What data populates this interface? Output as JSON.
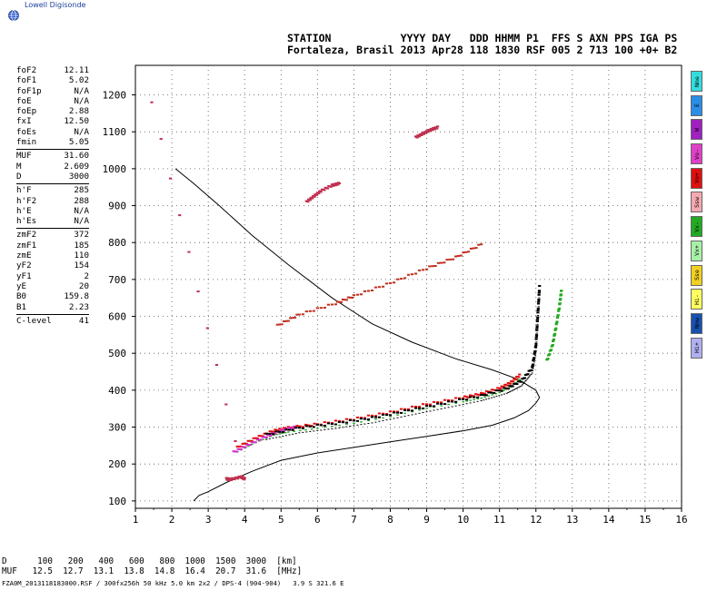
{
  "logo": {
    "text": "Lowell Digisonde"
  },
  "header": {
    "line1": "STATION           YYYY DAY   DDD HHMM P1  FFS S AXN PPS IGA PS",
    "line2": "Fortaleza, Brasil 2013 Apr28 118 1830 RSF 005 2 713 100 +0+ B2"
  },
  "params": [
    [
      {
        "k": "foF2",
        "v": "12.11"
      },
      {
        "k": "foF1",
        "v": "5.02"
      },
      {
        "k": "foF1p",
        "v": "N/A"
      },
      {
        "k": "foE",
        "v": "N/A"
      },
      {
        "k": "foEp",
        "v": "2.88"
      },
      {
        "k": "fxI",
        "v": "12.50"
      },
      {
        "k": "foEs",
        "v": "N/A"
      },
      {
        "k": "fmin",
        "v": "5.05"
      }
    ],
    [
      {
        "k": "MUF",
        "v": "31.60"
      },
      {
        "k": "M",
        "v": "2.609"
      },
      {
        "k": "D",
        "v": "3000"
      }
    ],
    [
      {
        "k": "h'F",
        "v": "285"
      },
      {
        "k": "h'F2",
        "v": "288"
      },
      {
        "k": "h'E",
        "v": "N/A"
      },
      {
        "k": "h'Es",
        "v": "N/A"
      }
    ],
    [
      {
        "k": "zmF2",
        "v": "372"
      },
      {
        "k": "zmF1",
        "v": "185"
      },
      {
        "k": "zmE",
        "v": "110"
      },
      {
        "k": "yF2",
        "v": "154"
      },
      {
        "k": "yF1",
        "v": "2"
      },
      {
        "k": "yE",
        "v": "20"
      },
      {
        "k": "B0",
        "v": "159.8"
      },
      {
        "k": "B1",
        "v": "2.23"
      }
    ],
    [
      {
        "k": "C-level",
        "v": "41"
      }
    ]
  ],
  "legend": [
    {
      "label": "Nne",
      "color": "#33dddd"
    },
    {
      "label": "E",
      "color": "#2a8de6"
    },
    {
      "label": "W",
      "color": "#a020c0"
    },
    {
      "label": "Vo-",
      "color": "#e040c8"
    },
    {
      "label": "Vo+",
      "color": "#e01010"
    },
    {
      "label": "Ssw",
      "color": "#f4a8b0"
    },
    {
      "label": "Vx-",
      "color": "#22aa22"
    },
    {
      "label": "Vx+",
      "color": "#a8f0a8"
    },
    {
      "label": "Sse",
      "color": "#f0d020"
    },
    {
      "label": "Hi-",
      "color": "#ffff60"
    },
    {
      "label": "Nnw",
      "color": "#1850b0"
    },
    {
      "label": "Hi+",
      "color": "#b0b0f0"
    }
  ],
  "muf_table": {
    "d_label": "D",
    "d_values": [
      "100",
      "200",
      "400",
      "600",
      "800",
      "1000",
      "1500",
      "3000"
    ],
    "d_unit": "[km]",
    "muf_label": "MUF",
    "muf_values": [
      "12.5",
      "12.7",
      "13.1",
      "13.8",
      "14.8",
      "16.4",
      "20.7",
      "31.6"
    ],
    "muf_unit": "[MHz]"
  },
  "footer": {
    "text": "FZA0M_2013118183000.RSF / 300fx256h 50 kHz 5.0 km 2x2 / DPS-4 (904-904)   3.9 S 321.6 E"
  },
  "chart_data": {
    "type": "scatter",
    "title": "",
    "xlabel": "",
    "ylabel": "",
    "xlim": [
      1,
      16
    ],
    "ylim": [
      80,
      1280
    ],
    "x_ticks": [
      1,
      2,
      3,
      4,
      5,
      6,
      7,
      8,
      9,
      10,
      11,
      12,
      13,
      14,
      15,
      16
    ],
    "y_ticks": [
      100,
      200,
      300,
      400,
      500,
      600,
      700,
      800,
      900,
      1000,
      1100,
      1200
    ],
    "grid": true,
    "profile": [
      [
        2.6,
        100
      ],
      [
        2.75,
        115
      ],
      [
        3.0,
        125
      ],
      [
        3.5,
        150
      ],
      [
        4.2,
        180
      ],
      [
        5.0,
        210
      ],
      [
        6.0,
        230
      ],
      [
        7.0,
        245
      ],
      [
        8.0,
        260
      ],
      [
        9.0,
        275
      ],
      [
        10.0,
        290
      ],
      [
        10.8,
        305
      ],
      [
        11.4,
        325
      ],
      [
        11.8,
        345
      ],
      [
        12.0,
        365
      ],
      [
        12.1,
        380
      ],
      [
        12.0,
        400
      ],
      [
        11.5,
        430
      ],
      [
        10.8,
        455
      ],
      [
        9.8,
        485
      ],
      [
        8.6,
        530
      ],
      [
        7.5,
        580
      ],
      [
        6.4,
        650
      ],
      [
        5.2,
        740
      ],
      [
        4.2,
        820
      ],
      [
        3.3,
        900
      ],
      [
        2.6,
        960
      ],
      [
        2.1,
        1000
      ]
    ],
    "traces": [
      {
        "name": "O F2 trace",
        "color": "#e01010",
        "points": [
          [
            3.8,
            245
          ],
          [
            4.3,
            270
          ],
          [
            4.8,
            290
          ],
          [
            5.2,
            298
          ],
          [
            6.0,
            308
          ],
          [
            7.0,
            322
          ],
          [
            8.0,
            340
          ],
          [
            9.0,
            362
          ],
          [
            10.0,
            380
          ],
          [
            10.5,
            390
          ],
          [
            11.0,
            405
          ],
          [
            11.3,
            420
          ],
          [
            11.55,
            440
          ]
        ]
      },
      {
        "name": "O F2 lower",
        "color": "#d030c8",
        "points": [
          [
            3.7,
            232
          ],
          [
            4.1,
            252
          ],
          [
            4.6,
            275
          ],
          [
            5.0,
            290
          ],
          [
            5.4,
            300
          ]
        ]
      },
      {
        "name": "X F2 trace",
        "color": "#000000",
        "points": [
          [
            4.6,
            280
          ],
          [
            5.5,
            298
          ],
          [
            6.5,
            310
          ],
          [
            7.5,
            325
          ],
          [
            8.5,
            345
          ],
          [
            9.5,
            365
          ],
          [
            10.5,
            385
          ],
          [
            11.2,
            405
          ],
          [
            11.6,
            425
          ],
          [
            11.9,
            460
          ],
          [
            12.0,
            520
          ],
          [
            12.05,
            600
          ],
          [
            12.1,
            680
          ]
        ]
      },
      {
        "name": "multi-hop 2",
        "color": "#c03020",
        "points": [
          [
            4.9,
            575
          ],
          [
            5.5,
            605
          ],
          [
            6.5,
            635
          ],
          [
            7.0,
            655
          ],
          [
            8.0,
            690
          ],
          [
            9.0,
            730
          ],
          [
            9.8,
            760
          ],
          [
            10.5,
            795
          ]
        ]
      },
      {
        "name": "multi-hop 3",
        "color": "#c03050",
        "points": [
          [
            5.7,
            910
          ],
          [
            5.9,
            925
          ],
          [
            6.1,
            940
          ],
          [
            6.4,
            955
          ],
          [
            6.6,
            960
          ]
        ]
      },
      {
        "name": "multi-hop 4",
        "color": "#c03050",
        "points": [
          [
            8.7,
            1085
          ],
          [
            8.9,
            1095
          ],
          [
            9.1,
            1105
          ],
          [
            9.3,
            1112
          ]
        ]
      },
      {
        "name": "Es spots",
        "color": "#c03050",
        "points": [
          [
            3.5,
            160
          ],
          [
            3.6,
            158
          ],
          [
            3.9,
            165
          ],
          [
            4.0,
            160
          ],
          [
            1.45,
            1180
          ]
        ]
      },
      {
        "name": "Vx trace",
        "color": "#22aa22",
        "points": [
          [
            12.3,
            480
          ],
          [
            12.45,
            520
          ],
          [
            12.55,
            570
          ],
          [
            12.65,
            630
          ],
          [
            12.7,
            670
          ]
        ]
      }
    ]
  }
}
